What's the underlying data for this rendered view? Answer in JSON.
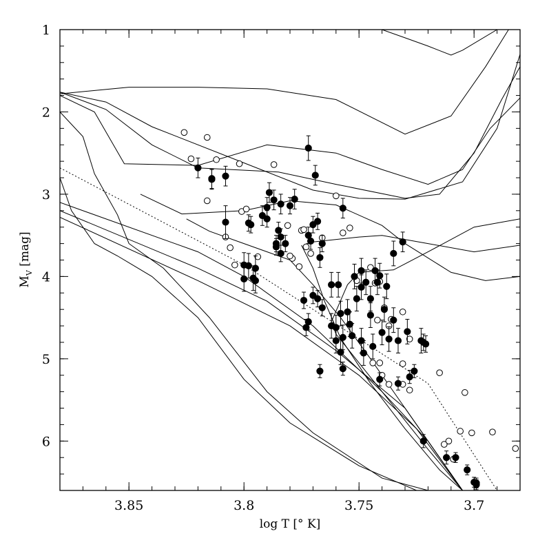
{
  "chart_data": {
    "type": "scatter",
    "title": "",
    "xlabel": "log T [° K]",
    "ylabel": {
      "base": "M",
      "subscript": "V",
      "rest": " [mag]"
    },
    "xlim": [
      3.88,
      3.68
    ],
    "ylim": [
      6.6,
      1.0
    ],
    "x_ticks": [
      3.85,
      3.8,
      3.75,
      3.7
    ],
    "y_ticks": [
      1,
      2,
      3,
      4,
      5,
      6
    ],
    "x_tick_labels": [
      "3.85",
      "3.8",
      "3.75",
      "3.7"
    ],
    "y_tick_labels": [
      "1",
      "2",
      "3",
      "4",
      "5",
      "6"
    ],
    "isochrones": [
      [
        [
          3.74,
          1.0
        ],
        [
          3.73,
          1.1
        ],
        [
          3.72,
          1.2
        ],
        [
          3.71,
          1.31
        ],
        [
          3.705,
          1.25
        ],
        [
          3.69,
          1.0
        ]
      ],
      [
        [
          3.88,
          1.78
        ],
        [
          3.85,
          1.7
        ],
        [
          3.82,
          1.7
        ],
        [
          3.79,
          1.72
        ],
        [
          3.76,
          1.85
        ],
        [
          3.73,
          2.27
        ],
        [
          3.71,
          2.05
        ],
        [
          3.695,
          1.45
        ],
        [
          3.685,
          1.0
        ]
      ],
      [
        [
          3.88,
          1.76
        ],
        [
          3.86,
          1.88
        ],
        [
          3.84,
          2.18
        ],
        [
          3.8,
          2.62
        ],
        [
          3.77,
          2.95
        ],
        [
          3.75,
          3.05
        ],
        [
          3.73,
          3.06
        ],
        [
          3.705,
          2.85
        ],
        [
          3.69,
          2.2
        ],
        [
          3.68,
          1.3
        ]
      ],
      [
        [
          3.88,
          1.76
        ],
        [
          3.86,
          1.97
        ],
        [
          3.84,
          2.4
        ],
        [
          3.82,
          2.68
        ],
        [
          3.785,
          2.73
        ],
        [
          3.76,
          2.88
        ],
        [
          3.73,
          3.05
        ],
        [
          3.715,
          3.0
        ],
        [
          3.7,
          2.5
        ],
        [
          3.688,
          1.85
        ],
        [
          3.68,
          1.45
        ]
      ],
      [
        [
          3.88,
          1.8
        ],
        [
          3.865,
          2.0
        ],
        [
          3.852,
          2.63
        ],
        [
          3.82,
          2.65
        ],
        [
          3.79,
          2.4
        ],
        [
          3.76,
          2.5
        ],
        [
          3.74,
          2.7
        ],
        [
          3.72,
          2.88
        ],
        [
          3.705,
          2.7
        ],
        [
          3.693,
          2.2
        ],
        [
          3.68,
          1.83
        ]
      ],
      [
        [
          3.88,
          2.0
        ],
        [
          3.87,
          2.3
        ],
        [
          3.865,
          2.75
        ],
        [
          3.855,
          3.25
        ],
        [
          3.85,
          3.6
        ],
        [
          3.835,
          3.9
        ],
        [
          3.815,
          4.5
        ],
        [
          3.79,
          5.4
        ],
        [
          3.77,
          5.9
        ],
        [
          3.74,
          6.45
        ],
        [
          3.72,
          6.6
        ]
      ],
      [
        [
          3.88,
          2.8
        ],
        [
          3.875,
          3.2
        ],
        [
          3.865,
          3.6
        ],
        [
          3.855,
          3.75
        ],
        [
          3.84,
          4.0
        ],
        [
          3.82,
          4.5
        ],
        [
          3.8,
          5.25
        ],
        [
          3.78,
          5.78
        ],
        [
          3.75,
          6.3
        ],
        [
          3.725,
          6.6
        ]
      ],
      [
        [
          3.845,
          3.0
        ],
        [
          3.827,
          3.24
        ],
        [
          3.8,
          3.2
        ],
        [
          3.78,
          3.08
        ],
        [
          3.76,
          3.13
        ],
        [
          3.74,
          3.38
        ],
        [
          3.73,
          3.6
        ],
        [
          3.71,
          3.95
        ],
        [
          3.695,
          4.05
        ],
        [
          3.68,
          4.0
        ]
      ],
      [
        [
          3.825,
          3.3
        ],
        [
          3.815,
          3.45
        ],
        [
          3.8,
          3.6
        ],
        [
          3.78,
          3.8
        ],
        [
          3.77,
          4.1
        ],
        [
          3.758,
          4.5
        ],
        [
          3.745,
          5.0
        ],
        [
          3.73,
          5.6
        ],
        [
          3.715,
          6.2
        ],
        [
          3.705,
          6.6
        ]
      ],
      [
        [
          3.77,
          3.58
        ],
        [
          3.75,
          3.52
        ],
        [
          3.74,
          3.5
        ],
        [
          3.72,
          3.6
        ],
        [
          3.7,
          3.7
        ],
        [
          3.68,
          3.62
        ]
      ],
      [
        [
          3.775,
          3.62
        ],
        [
          3.77,
          3.9
        ],
        [
          3.765,
          4.3
        ],
        [
          3.758,
          4.75
        ],
        [
          3.745,
          5.3
        ],
        [
          3.73,
          5.85
        ],
        [
          3.715,
          6.35
        ],
        [
          3.705,
          6.6
        ]
      ],
      [
        [
          3.75,
          3.95
        ],
        [
          3.735,
          3.92
        ],
        [
          3.72,
          3.7
        ],
        [
          3.7,
          3.4
        ],
        [
          3.68,
          3.3
        ]
      ],
      [
        [
          3.75,
          3.95
        ],
        [
          3.755,
          4.1
        ],
        [
          3.762,
          4.55
        ],
        [
          3.76,
          4.7
        ],
        [
          3.74,
          5.4
        ],
        [
          3.72,
          6.0
        ],
        [
          3.705,
          6.6
        ]
      ]
    ],
    "zams_lines": [
      [
        [
          3.88,
          3.1
        ],
        [
          3.82,
          3.7
        ],
        [
          3.8,
          4.0
        ],
        [
          3.77,
          4.6
        ],
        [
          3.74,
          5.4
        ],
        [
          3.72,
          6.1
        ],
        [
          3.705,
          6.6
        ]
      ],
      [
        [
          3.88,
          3.2
        ],
        [
          3.82,
          3.9
        ],
        [
          3.79,
          4.3
        ],
        [
          3.76,
          4.9
        ],
        [
          3.73,
          5.6
        ],
        [
          3.715,
          6.2
        ],
        [
          3.705,
          6.6
        ]
      ],
      [
        [
          3.88,
          3.28
        ],
        [
          3.82,
          4.05
        ],
        [
          3.78,
          4.6
        ],
        [
          3.75,
          5.2
        ],
        [
          3.725,
          5.85
        ],
        [
          3.705,
          6.6
        ]
      ]
    ],
    "dotted_line": [
      [
        3.88,
        2.68
      ],
      [
        3.8,
        3.86
      ],
      [
        3.72,
        5.3
      ],
      [
        3.69,
        6.6
      ]
    ],
    "series": [
      {
        "name": "filled",
        "points": [
          [
            3.82,
            2.68,
            0.12
          ],
          [
            3.814,
            2.81,
            0.12
          ],
          [
            3.814,
            2.82,
            0.12
          ],
          [
            3.808,
            2.78,
            0.12
          ],
          [
            3.789,
            2.98,
            0.12
          ],
          [
            3.784,
            3.12,
            0.12
          ],
          [
            3.787,
            3.07,
            0.12
          ],
          [
            3.79,
            3.16,
            0.12
          ],
          [
            3.792,
            3.26,
            0.12
          ],
          [
            3.79,
            3.3,
            0.1
          ],
          [
            3.808,
            3.34,
            0.2
          ],
          [
            3.798,
            3.35,
            0.1
          ],
          [
            3.797,
            3.37,
            0.1
          ],
          [
            3.785,
            3.44,
            0.1
          ],
          [
            3.784,
            3.52,
            0.1
          ],
          [
            3.786,
            3.6,
            0.1
          ],
          [
            3.798,
            3.87,
            0.15
          ],
          [
            3.8,
            3.86,
            0.15
          ],
          [
            3.795,
            3.9,
            0.15
          ],
          [
            3.8,
            4.03,
            0.15
          ],
          [
            3.796,
            4.02,
            0.15
          ],
          [
            3.795,
            4.05,
            0.15
          ],
          [
            3.784,
            3.72,
            0.1
          ],
          [
            3.786,
            3.64,
            0.1
          ],
          [
            3.782,
            3.6,
            0.1
          ],
          [
            3.772,
            3.5,
            0.1
          ],
          [
            3.771,
            3.57,
            0.1
          ],
          [
            3.766,
            3.6,
            0.1
          ],
          [
            3.768,
            3.33,
            0.1
          ],
          [
            3.77,
            3.37,
            0.1
          ],
          [
            3.78,
            3.14,
            0.1
          ],
          [
            3.778,
            3.06,
            0.12
          ],
          [
            3.772,
            2.44,
            0.15
          ],
          [
            3.769,
            2.77,
            0.12
          ],
          [
            3.757,
            3.17,
            0.12
          ],
          [
            3.766,
            4.38,
            0.1
          ],
          [
            3.77,
            4.23,
            0.1
          ],
          [
            3.768,
            4.27,
            0.1
          ],
          [
            3.774,
            4.29,
            0.1
          ],
          [
            3.773,
            4.62,
            0.1
          ],
          [
            3.772,
            4.55,
            0.1
          ],
          [
            3.767,
            3.77,
            0.12
          ],
          [
            3.762,
            4.1,
            0.15
          ],
          [
            3.759,
            4.1,
            0.15
          ],
          [
            3.752,
            4.0,
            0.15
          ],
          [
            3.749,
            3.93,
            0.15
          ],
          [
            3.743,
            3.93,
            0.15
          ],
          [
            3.751,
            4.27,
            0.15
          ],
          [
            3.747,
            4.07,
            0.15
          ],
          [
            3.742,
            4.07,
            0.15
          ],
          [
            3.739,
            4.4,
            0.15
          ],
          [
            3.745,
            4.47,
            0.15
          ],
          [
            3.758,
            4.45,
            0.15
          ],
          [
            3.762,
            4.6,
            0.15
          ],
          [
            3.757,
            4.74,
            0.15
          ],
          [
            3.753,
            4.72,
            0.15
          ],
          [
            3.749,
            4.78,
            0.15
          ],
          [
            3.748,
            4.93,
            0.15
          ],
          [
            3.758,
            4.92,
            0.15
          ],
          [
            3.744,
            4.85,
            0.15
          ],
          [
            3.737,
            4.76,
            0.15
          ],
          [
            3.74,
            4.68,
            0.15
          ],
          [
            3.735,
            4.53,
            0.15
          ],
          [
            3.729,
            4.67,
            0.15
          ],
          [
            3.723,
            4.78,
            0.15
          ],
          [
            3.733,
            4.78,
            0.15
          ],
          [
            3.741,
            3.99,
            0.15
          ],
          [
            3.738,
            4.12,
            0.15
          ],
          [
            3.731,
            3.58,
            0.12
          ],
          [
            3.735,
            3.72,
            0.15
          ],
          [
            3.745,
            4.27,
            0.15
          ],
          [
            3.749,
            4.13,
            0.15
          ],
          [
            3.754,
            4.58,
            0.15
          ],
          [
            3.76,
            4.62,
            0.15
          ],
          [
            3.755,
            4.43,
            0.15
          ],
          [
            3.76,
            4.78,
            0.15
          ],
          [
            3.722,
            4.8,
            0.1
          ],
          [
            3.721,
            4.82,
            0.1
          ],
          [
            3.728,
            5.22,
            0.08
          ],
          [
            3.741,
            5.25,
            0.08
          ],
          [
            3.767,
            5.15,
            0.08
          ],
          [
            3.733,
            5.3,
            0.08
          ],
          [
            3.757,
            5.12,
            0.08
          ],
          [
            3.726,
            5.15,
            0.08
          ],
          [
            3.722,
            6.0,
            0.08
          ],
          [
            3.712,
            6.2,
            0.08
          ],
          [
            3.708,
            6.2,
            0.06
          ],
          [
            3.703,
            6.35,
            0.06
          ],
          [
            3.699,
            6.53,
            0.06
          ],
          [
            3.7,
            6.5,
            0.06
          ],
          [
            3.699,
            6.51,
            0.06
          ]
        ]
      },
      {
        "name": "open",
        "points": [
          [
            3.826,
            2.25
          ],
          [
            3.816,
            2.31
          ],
          [
            3.823,
            2.57
          ],
          [
            3.812,
            2.58
          ],
          [
            3.802,
            2.63
          ],
          [
            3.816,
            3.08
          ],
          [
            3.787,
            2.64
          ],
          [
            3.801,
            3.21
          ],
          [
            3.799,
            3.18
          ],
          [
            3.781,
            3.38
          ],
          [
            3.775,
            3.44
          ],
          [
            3.808,
            3.52
          ],
          [
            3.806,
            3.65
          ],
          [
            3.804,
            3.86
          ],
          [
            3.794,
            3.76
          ],
          [
            3.779,
            3.78
          ],
          [
            3.774,
            3.43
          ],
          [
            3.773,
            3.64
          ],
          [
            3.776,
            3.88
          ],
          [
            3.78,
            3.75
          ],
          [
            3.771,
            3.72
          ],
          [
            3.766,
            3.53
          ],
          [
            3.754,
            3.41
          ],
          [
            3.757,
            3.47
          ],
          [
            3.76,
            3.02
          ],
          [
            3.745,
            3.89
          ],
          [
            3.741,
            4.06
          ],
          [
            3.739,
            4.38
          ],
          [
            3.742,
            4.53
          ],
          [
            3.751,
            4.05
          ],
          [
            3.743,
            4.08
          ],
          [
            3.736,
            4.52
          ],
          [
            3.731,
            4.43
          ],
          [
            3.737,
            4.6
          ],
          [
            3.728,
            4.76
          ],
          [
            3.744,
            5.05
          ],
          [
            3.741,
            5.05
          ],
          [
            3.74,
            5.2
          ],
          [
            3.737,
            5.31
          ],
          [
            3.731,
            5.31
          ],
          [
            3.731,
            5.06
          ],
          [
            3.728,
            5.38
          ],
          [
            3.715,
            5.17
          ],
          [
            3.706,
            5.88
          ],
          [
            3.701,
            5.9
          ],
          [
            3.711,
            6.0
          ],
          [
            3.713,
            6.04
          ],
          [
            3.709,
            6.22
          ],
          [
            3.704,
            5.41
          ],
          [
            3.692,
            5.89
          ],
          [
            3.682,
            6.09
          ]
        ]
      }
    ]
  }
}
